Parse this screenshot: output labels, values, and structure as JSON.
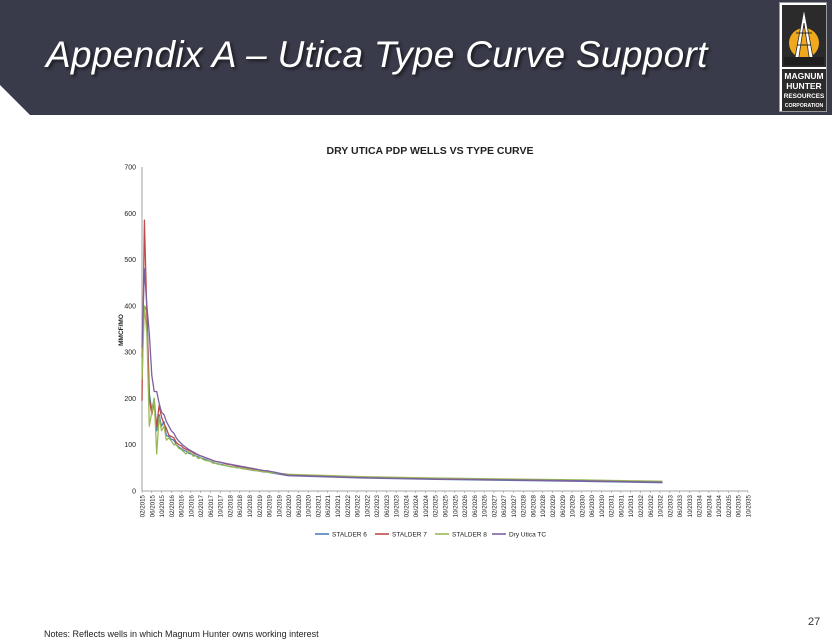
{
  "slide": {
    "title": "Appendix A – Utica Type Curve Support",
    "page_number": "27",
    "notes": "Notes: Reflects wells in which Magnum Hunter owns working interest",
    "logo_text": [
      "MAGNUM",
      "HUNTER",
      "RESOURCES",
      "CORPORATION"
    ]
  },
  "colors": {
    "header": "#3a3b4a",
    "logo_accent": "#f0a81c",
    "logo_dark": "#2b2b2b"
  },
  "chart_data": {
    "type": "line",
    "title": "DRY UTICA PDP WELLS VS TYPE CURVE",
    "xlabel": "",
    "ylabel": "MMCF/MO",
    "ylim": [
      0,
      700
    ],
    "yticks": [
      0,
      100,
      200,
      300,
      400,
      500,
      600,
      700
    ],
    "x_tick_labels": [
      "02/2015",
      "06/2015",
      "10/2015",
      "02/2016",
      "06/2016",
      "10/2016",
      "02/2017",
      "06/2017",
      "10/2017",
      "02/2018",
      "06/2018",
      "10/2018",
      "02/2019",
      "06/2019",
      "10/2019",
      "02/2020",
      "06/2020",
      "10/2020",
      "02/2021",
      "06/2021",
      "10/2021",
      "02/2022",
      "06/2022",
      "10/2022",
      "02/2023",
      "06/2023",
      "10/2023",
      "02/2024",
      "06/2024",
      "10/2024",
      "02/2025",
      "06/2025",
      "10/2025",
      "02/2026",
      "06/2026",
      "10/2026",
      "02/2027",
      "06/2027",
      "10/2027",
      "02/2028",
      "06/2028",
      "10/2028",
      "02/2029",
      "06/2029",
      "10/2029",
      "02/2030",
      "06/2030",
      "10/2030",
      "02/2031",
      "06/2031",
      "10/2031",
      "02/2032",
      "06/2032",
      "10/2032",
      "02/2033",
      "06/2033",
      "10/2033",
      "02/2034",
      "06/2034",
      "10/2034",
      "02/2035",
      "06/2035",
      "10/2035"
    ],
    "legend_position": "bottom",
    "grid": false,
    "series": [
      {
        "name": "STALDER 6",
        "color": "#4a7ebb",
        "values": [
          290,
          400,
          390,
          210,
          175,
          200,
          130,
          165,
          140,
          150,
          120,
          118,
          112,
          110,
          100,
          95,
          92,
          88,
          86,
          82,
          80,
          78,
          76,
          74,
          72,
          70,
          68,
          66,
          64,
          62,
          60,
          59,
          58,
          57,
          55,
          54,
          53,
          52,
          52,
          51,
          50,
          49,
          48,
          47,
          46,
          45,
          44,
          44,
          43,
          42,
          41,
          41,
          40,
          39,
          38
        ],
        "tail": [
          [
            60,
            33
          ],
          [
            90,
            28
          ],
          [
            120,
            25
          ],
          [
            150,
            23
          ],
          [
            180,
            21
          ],
          [
            213,
            18
          ]
        ]
      },
      {
        "name": "STALDER 7",
        "color": "#be4b48",
        "values": [
          195,
          585,
          380,
          200,
          165,
          190,
          140,
          185,
          160,
          145,
          135,
          120,
          118,
          115,
          105,
          100,
          98,
          93,
          90,
          88,
          86,
          82,
          80,
          78,
          76,
          74,
          72,
          70,
          68,
          66,
          64,
          63,
          62,
          61,
          59,
          58,
          57,
          56,
          55,
          54,
          53,
          52,
          51,
          50,
          49,
          48,
          47,
          46,
          45,
          44,
          43,
          42,
          42,
          41,
          40
        ],
        "tail": [
          [
            60,
            34
          ],
          [
            90,
            29
          ],
          [
            120,
            26
          ],
          [
            150,
            24
          ],
          [
            180,
            22
          ],
          [
            213,
            19
          ]
        ]
      },
      {
        "name": "STALDER 8",
        "color": "#98b954",
        "values": [
          240,
          400,
          340,
          140,
          170,
          200,
          80,
          160,
          130,
          140,
          110,
          115,
          108,
          100,
          100,
          92,
          90,
          85,
          80,
          85,
          82,
          75,
          76,
          70,
          72,
          68,
          66,
          65,
          64,
          60,
          60,
          58,
          57,
          56,
          55,
          54,
          52,
          52,
          51,
          50,
          50,
          48,
          48,
          47,
          46,
          45,
          45,
          44,
          43,
          42,
          42,
          41,
          40,
          40,
          39
        ],
        "tail": [
          [
            60,
            36
          ],
          [
            90,
            31
          ],
          [
            120,
            28
          ],
          [
            150,
            26
          ],
          [
            180,
            24
          ],
          [
            213,
            21
          ]
        ]
      },
      {
        "name": "Dry Utica TC",
        "color": "#7d60a0",
        "values": [
          310,
          480,
          400,
          340,
          250,
          215,
          215,
          190,
          170,
          165,
          150,
          140,
          130,
          125,
          115,
          108,
          103,
          98,
          94,
          90,
          87,
          84,
          81,
          78,
          76,
          74,
          72,
          70,
          68,
          66,
          64,
          63,
          62,
          61,
          60,
          59,
          58,
          57,
          56,
          55,
          54,
          53,
          52,
          51,
          50,
          49,
          48,
          47,
          46,
          45,
          44,
          44,
          43,
          42,
          41
        ],
        "tail": [
          [
            60,
            34
          ],
          [
            90,
            29
          ],
          [
            120,
            26
          ],
          [
            150,
            24
          ],
          [
            180,
            22
          ],
          [
            213,
            19
          ]
        ]
      }
    ]
  }
}
